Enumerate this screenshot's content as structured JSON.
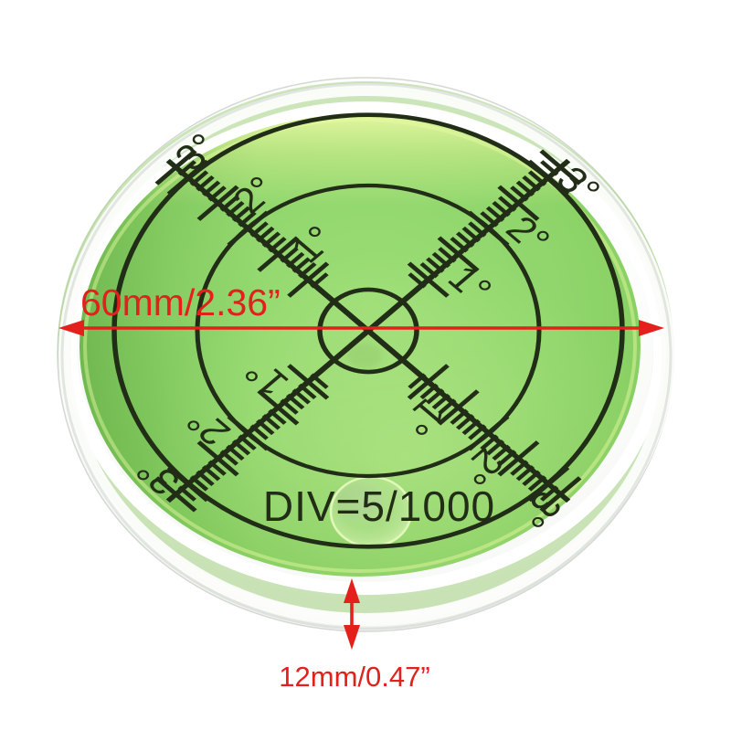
{
  "annotations": {
    "diameter_label": "60mm/2.36”",
    "height_label": "12mm/0.47”",
    "arrow_color": "#e3201b"
  },
  "dial": {
    "division_label": "DIV=5/1000",
    "degree_labels": [
      "1°",
      "2°",
      "3°"
    ],
    "print_color": "#212d16"
  },
  "colors": {
    "liquid_green": "#8ed46a",
    "liquid_green_light": "#b9e68f",
    "housing_white": "#f3f5f2",
    "background": "#ffffff"
  }
}
